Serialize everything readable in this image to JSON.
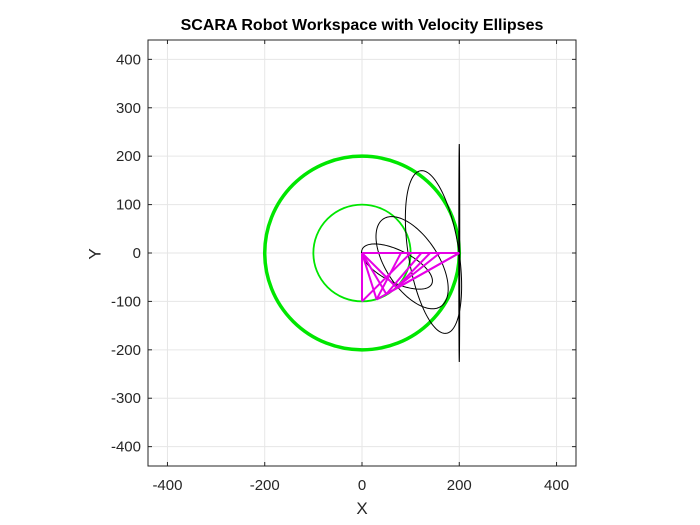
{
  "chart_data": {
    "type": "line",
    "title": "SCARA Robot Workspace with Velocity Ellipses",
    "xlabel": "X",
    "ylabel": "Y",
    "xlim": [
      -440,
      440
    ],
    "ylim": [
      -440,
      440
    ],
    "xticks": [
      -400,
      -200,
      0,
      200,
      400
    ],
    "yticks": [
      -400,
      -300,
      -200,
      -100,
      0,
      100,
      200,
      300,
      400
    ],
    "grid": true,
    "colors": {
      "workspace": "#00e600",
      "velocity_ellipse": "#000000",
      "arm": "#e600e6",
      "grid": "#e6e6e6",
      "axes": "#262626"
    },
    "workspace_circles": [
      {
        "name": "outer",
        "cx": 0,
        "cy": 0,
        "r": 200
      },
      {
        "name": "inner",
        "cx": 0,
        "cy": 0,
        "r": 100
      }
    ],
    "velocity_ellipses": [
      {
        "cx": 100,
        "cy": 0,
        "a": 100,
        "b": 1,
        "angle_deg": 0
      },
      {
        "cx": 200,
        "cy": 0,
        "a": 225,
        "b": 1,
        "angle_deg": 90
      },
      {
        "cx": 72,
        "cy": -28,
        "a": 80,
        "b": 33,
        "angle_deg": -27
      },
      {
        "cx": 103,
        "cy": -20,
        "a": 108,
        "b": 54,
        "angle_deg": -57
      },
      {
        "cx": 147,
        "cy": 2,
        "a": 170,
        "b": 52,
        "angle_deg": -81
      }
    ],
    "arm_polylines": [
      {
        "x": [
          0,
          30
        ],
        "y": [
          0,
          -96
        ]
      },
      {
        "x": [
          30,
          200
        ],
        "y": [
          -96,
          0
        ]
      },
      {
        "x": [
          0,
          200
        ],
        "y": [
          0,
          0
        ]
      },
      {
        "x": [
          0,
          50
        ],
        "y": [
          0,
          -85
        ]
      },
      {
        "x": [
          0,
          71
        ],
        "y": [
          0,
          -71
        ]
      },
      {
        "x": [
          30,
          80
        ],
        "y": [
          -96,
          0
        ]
      },
      {
        "x": [
          50,
          122
        ],
        "y": [
          -85,
          0
        ]
      },
      {
        "x": [
          71,
          160
        ],
        "y": [
          -71,
          0
        ]
      },
      {
        "x": [
          50,
          200
        ],
        "y": [
          -85,
          0
        ]
      },
      {
        "x": [
          71,
          140
        ],
        "y": [
          -71,
          0
        ]
      },
      {
        "x": [
          0,
          0
        ],
        "y": [
          0,
          -100
        ]
      },
      {
        "x": [
          0,
          100
        ],
        "y": [
          -100,
          0
        ]
      }
    ]
  }
}
